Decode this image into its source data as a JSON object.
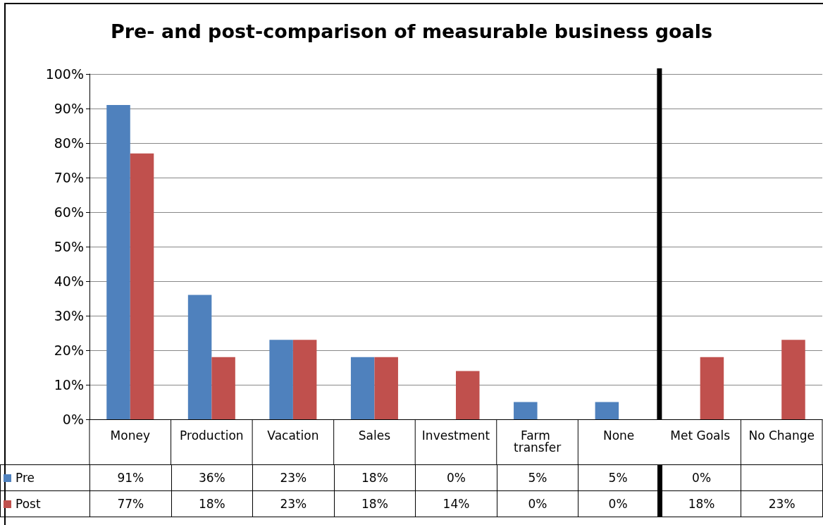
{
  "chart_data": {
    "type": "bar",
    "title": "Pre- and post-comparison of measurable business goals",
    "categories": [
      "Money",
      "Production",
      "Vacation",
      "Sales",
      "Investment",
      "Farm transfer",
      "None",
      "Met Goals",
      "No Change"
    ],
    "series": [
      {
        "name": "Pre",
        "color": "#4f81bd",
        "values": [
          91,
          36,
          23,
          18,
          0,
          5,
          5,
          0,
          null
        ],
        "value_labels": [
          "91%",
          "36%",
          "23%",
          "18%",
          "0%",
          "5%",
          "5%",
          "0%",
          null
        ]
      },
      {
        "name": "Post",
        "color": "#c0504d",
        "values": [
          77,
          18,
          23,
          18,
          14,
          0,
          0,
          18,
          23
        ],
        "value_labels": [
          "77%",
          "18%",
          "23%",
          "18%",
          "14%",
          "0%",
          "0%",
          "18%",
          "23%"
        ]
      }
    ],
    "ylim": [
      0,
      100
    ],
    "yticks": [
      {
        "value": 0,
        "label": "0%"
      },
      {
        "value": 10,
        "label": "10%"
      },
      {
        "value": 20,
        "label": "20%"
      },
      {
        "value": 30,
        "label": "30%"
      },
      {
        "value": 40,
        "label": "40%"
      },
      {
        "value": 50,
        "label": "50%"
      },
      {
        "value": 60,
        "label": "60%"
      },
      {
        "value": 70,
        "label": "70%"
      },
      {
        "value": 80,
        "label": "80%"
      },
      {
        "value": 90,
        "label": "90%"
      },
      {
        "value": 100,
        "label": "100%"
      }
    ],
    "ref_lines": [
      {
        "axis": "x",
        "value": "Met Goals",
        "label": null,
        "color": "#000000"
      }
    ],
    "grid": "y",
    "legend": "bottom left"
  }
}
